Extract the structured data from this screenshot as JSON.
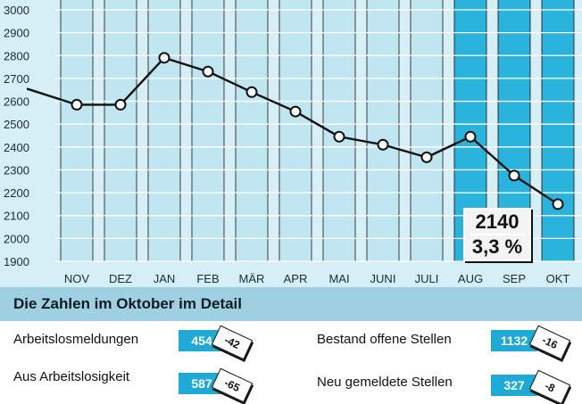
{
  "chart_data": {
    "type": "line",
    "categories": [
      "NOV",
      "DEZ",
      "JAN",
      "FEB",
      "MÄR",
      "APR",
      "MAI",
      "JUNI",
      "JULI",
      "AUG",
      "SEP",
      "OKT"
    ],
    "values": [
      2585,
      2585,
      2790,
      2730,
      2640,
      2555,
      2445,
      2410,
      2355,
      2445,
      2275,
      2150
    ],
    "lead_in_value": 2655,
    "ylim": [
      1900,
      3000
    ],
    "yticks": [
      1900,
      2000,
      2100,
      2200,
      2300,
      2400,
      2500,
      2600,
      2700,
      2800,
      2900,
      3000
    ],
    "highlighted_categories": [
      "AUG",
      "SEP",
      "OKT"
    ],
    "grid": true,
    "annotation": {
      "value": "2140",
      "rate": "3,3 %"
    },
    "colors": {
      "bar": "#bfe6f1",
      "bar_highlight": "#2ab3dc",
      "background": "#d6eef5",
      "line": "#111111"
    }
  },
  "detail": {
    "title": "Die Zahlen im Oktober im Detail",
    "items": [
      {
        "label": "Arbeitslosmeldungen",
        "value": "454",
        "delta": "-42"
      },
      {
        "label": "Bestand offene Stellen",
        "value": "1132",
        "delta": "-16"
      },
      {
        "label": "Aus Arbeitslosigkeit",
        "value": "587",
        "delta": "-65"
      },
      {
        "label": "Neu gemeldete Stellen",
        "value": "327",
        "delta": "-8"
      }
    ]
  }
}
